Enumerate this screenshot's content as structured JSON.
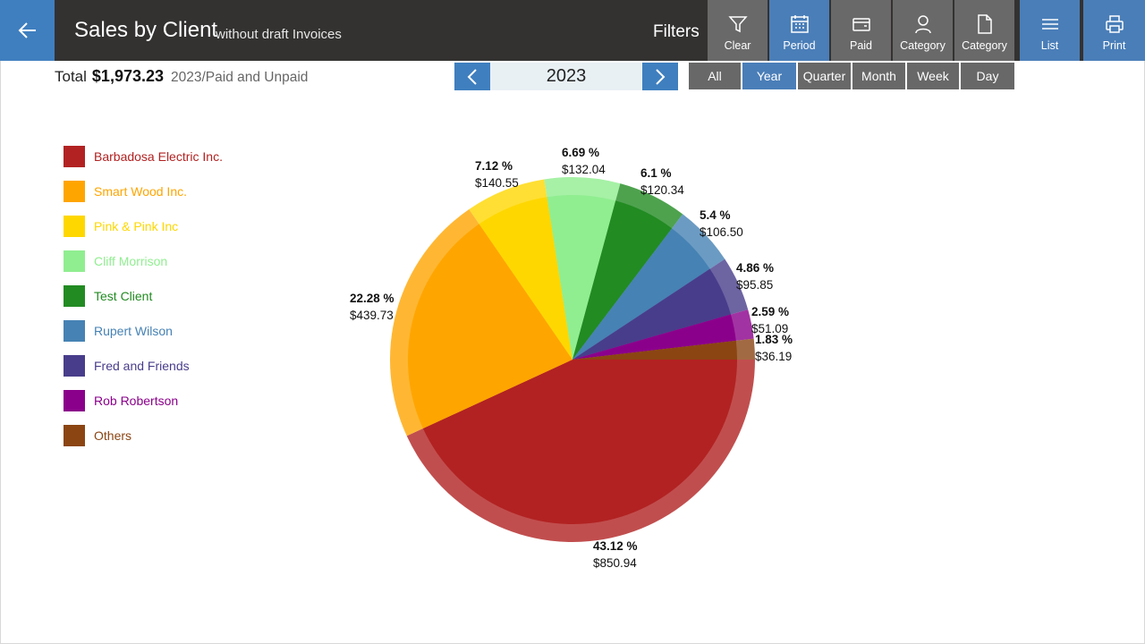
{
  "header": {
    "title": "Sales by Client",
    "subtitle": "without draft Invoices",
    "filters_label": "Filters",
    "buttons": [
      {
        "label": "Clear",
        "icon": "filter-icon"
      },
      {
        "label": "Period",
        "icon": "calendar-icon"
      },
      {
        "label": "Paid",
        "icon": "wallet-icon"
      },
      {
        "label": "Category",
        "icon": "person-icon"
      },
      {
        "label": "Category",
        "icon": "document-icon"
      },
      {
        "label": "List",
        "icon": "list-icon"
      },
      {
        "label": "Print",
        "icon": "printer-icon"
      }
    ]
  },
  "summary": {
    "total_label": "Total",
    "total_amount": "$1,973.23",
    "description": "2023/Paid and Unpaid"
  },
  "navigator": {
    "year": "2023"
  },
  "periods": {
    "tabs": [
      "All",
      "Year",
      "Quarter",
      "Month",
      "Week",
      "Day"
    ],
    "active": "Year"
  },
  "colors": {
    "accent_blue": "#3f7fbf",
    "title_bar": "#333231",
    "tab_gray": "#686868"
  },
  "chart_data": {
    "type": "pie",
    "slices": [
      {
        "label": "Barbadosa Electric Inc.",
        "percent": 43.12,
        "percent_text": "43.12 %",
        "amount": "$850.94",
        "color": "#b22222"
      },
      {
        "label": "Smart Wood Inc.",
        "percent": 22.28,
        "percent_text": "22.28 %",
        "amount": "$439.73",
        "color": "#ffa500"
      },
      {
        "label": "Pink & Pink Inc",
        "percent": 7.12,
        "percent_text": "7.12 %",
        "amount": "$140.55",
        "color": "#ffd700"
      },
      {
        "label": "Cliff Morrison",
        "percent": 6.69,
        "percent_text": "6.69 %",
        "amount": "$132.04",
        "color": "#90ee90"
      },
      {
        "label": "Test Client",
        "percent": 6.1,
        "percent_text": "6.1 %",
        "amount": "$120.34",
        "color": "#228b22"
      },
      {
        "label": "Rupert Wilson",
        "percent": 5.4,
        "percent_text": "5.4 %",
        "amount": "$106.50",
        "color": "#4682b4"
      },
      {
        "label": "Fred and Friends",
        "percent": 4.86,
        "percent_text": "4.86 %",
        "amount": "$95.85",
        "color": "#483d8b"
      },
      {
        "label": "Rob Robertson",
        "percent": 2.59,
        "percent_text": "2.59 %",
        "amount": "$51.09",
        "color": "#8b008b"
      },
      {
        "label": "Others",
        "percent": 1.83,
        "percent_text": "1.83 %",
        "amount": "$36.19",
        "color": "#8b4513"
      }
    ],
    "legend_position": "left"
  }
}
